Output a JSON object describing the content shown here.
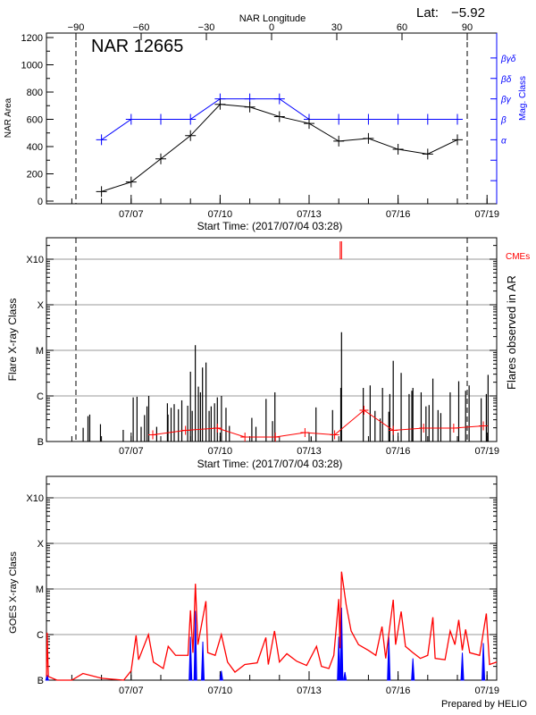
{
  "header": {
    "lat_label": "Lat:",
    "lat_value": "−5.92"
  },
  "footer": {
    "prepared": "Prepared by HELIO"
  },
  "colors": {
    "area": "#000000",
    "mag_class": "#0000ff",
    "flares": "#000000",
    "flare_count": "#ff0000",
    "cme": "#ff0000",
    "goes_long": "#ff0000",
    "goes_short": "#0000ff",
    "grid": "#999999"
  },
  "chart_data": [
    {
      "type": "line",
      "title": "NAR 12665",
      "xlabel": "Start Time: (2017/07/04 03:28)",
      "ylabel": "NAR Area",
      "y2label": "Mag. Class",
      "top_xlabel": "NAR Longitude",
      "top_ticks": [
        "-90",
        "-60",
        "-30",
        "0",
        "30",
        "60",
        "90"
      ],
      "limb_longitudes": [
        -90,
        90
      ],
      "x_start": "07/04 03:28",
      "x_ticks": [
        "07/07",
        "07/10",
        "07/13",
        "07/16",
        "07/19"
      ],
      "ylim": [
        0,
        1200
      ],
      "y_ticks": [
        "0",
        "200",
        "400",
        "600",
        "800",
        "1000",
        "1200"
      ],
      "y2_ticks": [
        "α",
        "β",
        "βγ",
        "βδ",
        "βγδ"
      ],
      "dates": [
        "07/06",
        "07/07",
        "07/08",
        "07/09",
        "07/10",
        "07/11",
        "07/12",
        "07/13",
        "07/14",
        "07/15",
        "07/16",
        "07/17",
        "07/18"
      ],
      "series": [
        {
          "name": "NAR Area",
          "axis": "left",
          "values": [
            70,
            140,
            310,
            480,
            710,
            690,
            620,
            570,
            440,
            460,
            380,
            345,
            450
          ]
        },
        {
          "name": "Mag. Class",
          "axis": "right",
          "values": [
            "α",
            "β",
            "β",
            "β",
            "βγ",
            "βγ",
            "βγ",
            "β",
            "β",
            "β",
            "β",
            "β",
            "β"
          ]
        }
      ]
    },
    {
      "type": "bar",
      "xlabel": "Start Time: (2017/07/04 03:28)",
      "ylabel": "Flare X-ray Class",
      "y2label": "Flares observed in AR",
      "cme_label": "CMEs",
      "x_ticks": [
        "07/07",
        "07/10",
        "07/13",
        "07/16",
        "07/19"
      ],
      "y_ticks": [
        "B",
        "C",
        "M",
        "X",
        "X10"
      ],
      "yscale": "log",
      "grid": true,
      "flares": [
        [
          "07/05 09:10",
          "B2.0"
        ],
        [
          "07/05 13:05",
          "B3.6"
        ],
        [
          "07/05 14:30",
          "B3.9"
        ],
        [
          "07/05 23:10",
          "B2.4"
        ],
        [
          "07/06 17:35",
          "B1.8"
        ],
        [
          "07/07 01:40",
          "B9.3"
        ],
        [
          "07/07 04:45",
          "B9.6"
        ],
        [
          "07/07 08:05",
          "B2.1"
        ],
        [
          "07/07 10:50",
          "B3.8"
        ],
        [
          "07/07 12:50",
          "B5.9"
        ],
        [
          "07/07 14:15",
          "C1.0"
        ],
        [
          "07/07 20:40",
          "B2.1"
        ],
        [
          "07/08 05:20",
          "B6.9"
        ],
        [
          "07/08 05:50",
          "B3.9"
        ],
        [
          "07/08 08:20",
          "B5.5"
        ],
        [
          "07/08 10:50",
          "B6.6"
        ],
        [
          "07/08 14:15",
          "B5.1"
        ],
        [
          "07/08 17:00",
          "B8.0"
        ],
        [
          "07/08 21:45",
          "B6.1"
        ],
        [
          "07/09 00:00",
          "C3.4"
        ],
        [
          "07/09 01:25",
          "B4.7"
        ],
        [
          "07/09 03:55",
          "M1.3"
        ],
        [
          "07/09 06:25",
          "C1.6"
        ],
        [
          "07/09 08:05",
          "C1.2"
        ],
        [
          "07/09 09:45",
          "C4.2"
        ],
        [
          "07/09 12:35",
          "C5.4"
        ],
        [
          "07/09 15:05",
          "B4.7"
        ],
        [
          "07/09 16:45",
          "B5.9"
        ],
        [
          "07/09 19:30",
          "B6.9"
        ],
        [
          "07/09 21:45",
          "B9.3"
        ],
        [
          "07/10 01:05",
          "C1.0"
        ],
        [
          "07/10 04:45",
          "B5.5"
        ],
        [
          "07/10 07:30",
          "B2.2"
        ],
        [
          "07/11 01:40",
          "B3.3"
        ],
        [
          "07/11 05:00",
          "B2.1"
        ],
        [
          "07/11 13:10",
          "B8.6"
        ],
        [
          "07/11 18:25",
          "B2.8"
        ],
        [
          "07/11 20:20",
          "C1.2"
        ],
        [
          "07/13 01:40",
          "B1.3"
        ],
        [
          "07/13 05:35",
          "B5.6"
        ],
        [
          "07/13 19:00",
          "B4.9"
        ],
        [
          "07/14 01:40",
          "C1.5"
        ],
        [
          "07/14 02:15",
          "M2.5"
        ],
        [
          "07/14 19:50",
          "C1.5"
        ],
        [
          "07/15 01:25",
          "C1.7"
        ],
        [
          "07/15 05:20",
          "B4.7"
        ],
        [
          "07/15 09:30",
          "B3.2"
        ],
        [
          "07/15 11:25",
          "C1.5"
        ],
        [
          "07/15 16:30",
          "B4.5"
        ],
        [
          "07/15 17:20",
          "C1.1"
        ],
        [
          "07/15 20:05",
          "C5.9"
        ],
        [
          "07/16 02:30",
          "C3.2"
        ],
        [
          "07/16 08:55",
          "C1.1"
        ],
        [
          "07/16 11:10",
          "C1.3"
        ],
        [
          "07/16 12:00",
          "C1.5"
        ],
        [
          "07/16 18:40",
          "C1.2"
        ],
        [
          "07/16 22:35",
          "B5.9"
        ],
        [
          "07/17 01:05",
          "B6.3"
        ],
        [
          "07/17 04:10",
          "C2.4"
        ],
        [
          "07/17 08:20",
          "B4.9"
        ],
        [
          "07/17 10:35",
          "B4.2"
        ],
        [
          "07/17 18:10",
          "C1.2"
        ],
        [
          "07/18 01:05",
          "C2.1"
        ],
        [
          "07/18 06:40",
          "C1.3"
        ],
        [
          "07/18 09:30",
          "C1.7"
        ],
        [
          "07/18 19:15",
          "B8.9"
        ],
        [
          "07/18 23:25",
          "C1.1"
        ],
        [
          "07/19 00:50",
          "C2.9"
        ]
      ],
      "flare_counts": [
        [
          "07/07 17:30",
          3
        ],
        [
          "07/08 20:00",
          5
        ],
        [
          "07/09 21:45",
          6
        ],
        [
          "07/10 20:05",
          2
        ],
        [
          "07/11 20:40",
          2
        ],
        [
          "07/12 20:40",
          4
        ],
        [
          "07/13 20:40",
          3
        ],
        [
          "07/14 20:25",
          14
        ],
        [
          "07/15 20:05",
          5
        ],
        [
          "07/16 20:40",
          6
        ],
        [
          "07/17 21:00",
          6
        ],
        [
          "07/18 21:00",
          7
        ]
      ],
      "cmes": [
        "07/14 01:10",
        "07/14 02:15"
      ],
      "limb_longitudes": [
        -90,
        90
      ]
    },
    {
      "type": "line",
      "ylabel": "GOES X-ray Class",
      "x_ticks": [
        "07/07",
        "07/10",
        "07/13",
        "07/16",
        "07/19"
      ],
      "y_ticks": [
        "B",
        "C",
        "M",
        "X",
        "X10"
      ],
      "yscale": "log",
      "grid": true,
      "series": [
        {
          "channel": "long",
          "points": [
            [
              "07/04 03:30",
              "B1.2"
            ],
            [
              "07/04 04:00",
              "C1.1"
            ],
            [
              "07/04 05:00",
              "B1.2"
            ],
            [
              "07/04 12:00",
              "B1.0"
            ],
            [
              "07/05 00:00",
              "B1.0"
            ],
            [
              "07/05 09:00",
              "B1.4"
            ],
            [
              "07/06 00:00",
              "B1.1"
            ],
            [
              "07/06 18:00",
              "B1.0"
            ],
            [
              "07/07 00:00",
              "B1.6"
            ],
            [
              "07/07 04:00",
              "B9.6"
            ],
            [
              "07/07 06:00",
              "B2.8"
            ],
            [
              "07/07 14:00",
              "C1.0"
            ],
            [
              "07/07 18:00",
              "B2.5"
            ],
            [
              "07/08 02:00",
              "B1.8"
            ],
            [
              "07/08 06:00",
              "B5.5"
            ],
            [
              "07/08 12:00",
              "B3.5"
            ],
            [
              "07/08 22:00",
              "B3.5"
            ],
            [
              "07/09 00:00",
              "C3.4"
            ],
            [
              "07/09 02:00",
              "B4.0"
            ],
            [
              "07/09 04:00",
              "M1.3"
            ],
            [
              "07/09 06:00",
              "B6.0"
            ],
            [
              "07/09 12:30",
              "C5.4"
            ],
            [
              "07/09 14:00",
              "B4.0"
            ],
            [
              "07/09 20:00",
              "B3.5"
            ],
            [
              "07/10 01:00",
              "C1.0"
            ],
            [
              "07/10 06:00",
              "B2.5"
            ],
            [
              "07/10 12:00",
              "B1.5"
            ],
            [
              "07/10 20:00",
              "B2.2"
            ],
            [
              "07/11 06:00",
              "B2.4"
            ],
            [
              "07/11 13:00",
              "B8.6"
            ],
            [
              "07/11 15:00",
              "B2.2"
            ],
            [
              "07/11 20:00",
              "C1.2"
            ],
            [
              "07/12 00:00",
              "B2.5"
            ],
            [
              "07/12 06:00",
              "B3.8"
            ],
            [
              "07/12 14:00",
              "B2.6"
            ],
            [
              "07/12 22:00",
              "B2.1"
            ],
            [
              "07/13 06:00",
              "B5.5"
            ],
            [
              "07/13 10:00",
              "B2.0"
            ],
            [
              "07/13 16:00",
              "B1.8"
            ],
            [
              "07/13 20:00",
              "B3.5"
            ],
            [
              "07/14 00:00",
              "C6.0"
            ],
            [
              "07/14 01:00",
              "B5.0"
            ],
            [
              "07/14 02:15",
              "M2.4"
            ],
            [
              "07/14 06:00",
              "C4.5"
            ],
            [
              "07/14 10:00",
              "C1.2"
            ],
            [
              "07/14 16:00",
              "B6.0"
            ],
            [
              "07/15 00:00",
              "B4.5"
            ],
            [
              "07/15 06:00",
              "B3.5"
            ],
            [
              "07/15 11:00",
              "C1.5"
            ],
            [
              "07/15 14:00",
              "B3.0"
            ],
            [
              "07/15 20:05",
              "C5.8"
            ],
            [
              "07/15 22:00",
              "B6.0"
            ],
            [
              "07/16 02:30",
              "C3.2"
            ],
            [
              "07/16 06:00",
              "B5.5"
            ],
            [
              "07/16 12:00",
              "B4.0"
            ],
            [
              "07/16 18:00",
              "B3.0"
            ],
            [
              "07/17 00:00",
              "B3.5"
            ],
            [
              "07/17 04:10",
              "C2.4"
            ],
            [
              "07/17 06:00",
              "B3.0"
            ],
            [
              "07/17 14:00",
              "B2.8"
            ],
            [
              "07/17 18:10",
              "C1.2"
            ],
            [
              "07/17 22:00",
              "B6.0"
            ],
            [
              "07/18 01:05",
              "C2.1"
            ],
            [
              "07/18 04:00",
              "B4.5"
            ],
            [
              "07/18 06:40",
              "C1.3"
            ],
            [
              "07/18 10:00",
              "B4.0"
            ],
            [
              "07/18 18:00",
              "B3.5"
            ],
            [
              "07/18 23:25",
              "C2.9"
            ],
            [
              "07/19 02:00",
              "B2.2"
            ],
            [
              "07/19 09:00",
              "B2.5"
            ]
          ]
        },
        {
          "channel": "short",
          "spikes": [
            [
              "07/04 04:00",
              "B1.3"
            ],
            [
              "07/09 00:00",
              "B9.0"
            ],
            [
              "07/09 04:00",
              "C3.3"
            ],
            [
              "07/09 10:00",
              "B7.0"
            ],
            [
              "07/10 01:00",
              "B1.6"
            ],
            [
              "07/14 00:00",
              "B9.0"
            ],
            [
              "07/14 02:15",
              "C3.9"
            ],
            [
              "07/14 05:00",
              "B1.5"
            ],
            [
              "07/15 16:30",
              "B9.0"
            ],
            [
              "07/16 12:00",
              "B3.0"
            ],
            [
              "07/18 04:00",
              "B4.0"
            ],
            [
              "07/18 21:00",
              "B6.5"
            ]
          ]
        }
      ]
    }
  ]
}
